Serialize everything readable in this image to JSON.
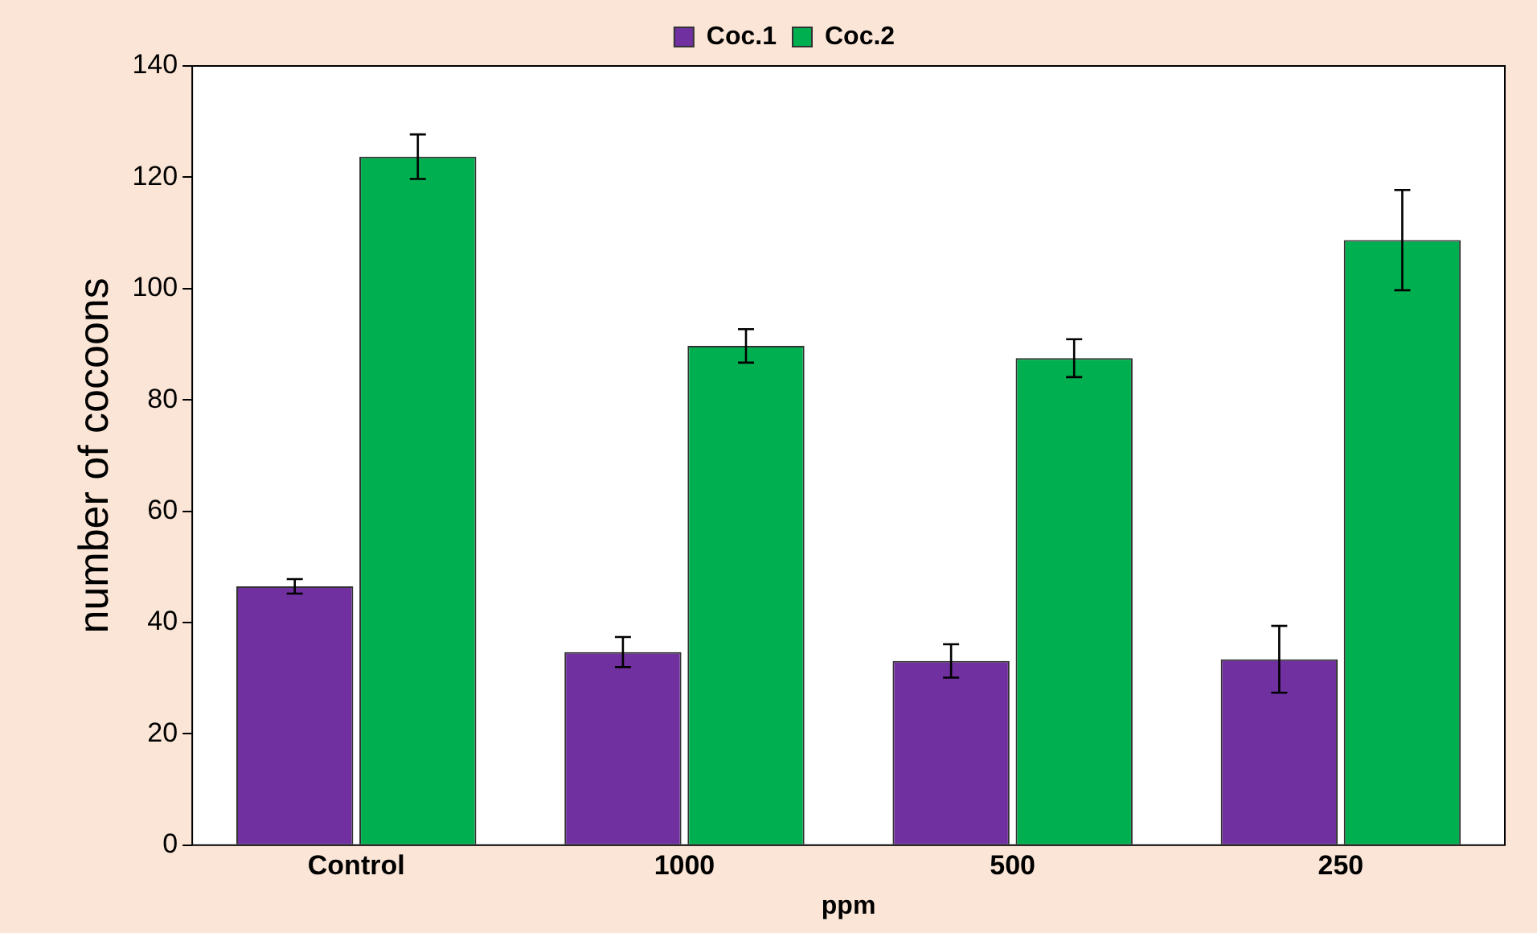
{
  "chart_data": {
    "type": "bar",
    "xlabel": "ppm",
    "ylabel": "number of cocoons",
    "categories": [
      "Control",
      "1000",
      "500",
      "250"
    ],
    "series": [
      {
        "name": "Coc.1",
        "color": "#7030a0",
        "values": [
          46.5,
          34.7,
          33.1,
          33.4
        ],
        "errors": [
          1.3,
          2.7,
          3,
          6
        ]
      },
      {
        "name": "Coc.2",
        "color": "#00b050",
        "values": [
          123.7,
          89.7,
          87.5,
          108.7
        ],
        "errors": [
          4,
          3,
          3.4,
          9
        ]
      }
    ],
    "ylim": [
      0,
      140
    ],
    "yticks": [
      0,
      20,
      40,
      60,
      80,
      100,
      120,
      140
    ],
    "grid": false,
    "legend": "top"
  }
}
